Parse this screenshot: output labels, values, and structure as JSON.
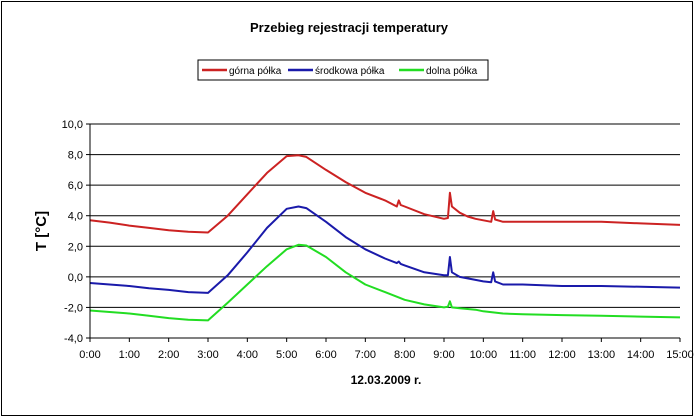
{
  "chart_data": {
    "type": "line",
    "title": "Przebieg rejestracji temperatury",
    "xlabel": "12.03.2009 r.",
    "ylabel": "T [°C]",
    "xlim": [
      0,
      15
    ],
    "ylim": [
      -4,
      10
    ],
    "x_ticks": [
      "0:00",
      "1:00",
      "2:00",
      "3:00",
      "4:00",
      "5:00",
      "6:00",
      "7:00",
      "8:00",
      "9:00",
      "10:00",
      "11:00",
      "12:00",
      "13:00",
      "14:00",
      "15:00"
    ],
    "y_ticks": [
      "-4,0",
      "-2,0",
      "0,0",
      "2,0",
      "4,0",
      "6,0",
      "8,0",
      "10,0"
    ],
    "grid": "horizontal",
    "legend_position": "top",
    "series": [
      {
        "name": "górna półka",
        "color": "#cc2222",
        "x": [
          0,
          0.5,
          1,
          1.5,
          2,
          2.5,
          3,
          3.5,
          4,
          4.5,
          5,
          5.3,
          5.5,
          6,
          6.5,
          7,
          7.5,
          7.8,
          7.85,
          7.9,
          8,
          8.5,
          9,
          9.1,
          9.15,
          9.2,
          9.4,
          9.6,
          9.8,
          10,
          10.2,
          10.25,
          10.3,
          10.5,
          11,
          12,
          13,
          14,
          15
        ],
        "y": [
          3.7,
          3.55,
          3.35,
          3.2,
          3.05,
          2.95,
          2.9,
          4.0,
          5.4,
          6.8,
          7.9,
          7.95,
          7.85,
          7.0,
          6.2,
          5.5,
          5.0,
          4.6,
          5.0,
          4.7,
          4.6,
          4.1,
          3.8,
          3.85,
          5.5,
          4.6,
          4.2,
          3.95,
          3.8,
          3.7,
          3.6,
          4.3,
          3.75,
          3.6,
          3.6,
          3.6,
          3.6,
          3.5,
          3.4
        ]
      },
      {
        "name": "środkowa półka",
        "color": "#1a1aaa",
        "x": [
          0,
          0.5,
          1,
          1.5,
          2,
          2.5,
          3,
          3.5,
          4,
          4.5,
          5,
          5.3,
          5.5,
          6,
          6.5,
          7,
          7.5,
          7.8,
          7.85,
          7.9,
          8,
          8.5,
          9,
          9.1,
          9.15,
          9.2,
          9.4,
          9.6,
          9.8,
          10,
          10.2,
          10.25,
          10.3,
          10.5,
          11,
          12,
          13,
          14,
          15
        ],
        "y": [
          -0.4,
          -0.5,
          -0.6,
          -0.75,
          -0.85,
          -1.0,
          -1.05,
          0.1,
          1.6,
          3.2,
          4.45,
          4.6,
          4.5,
          3.6,
          2.6,
          1.8,
          1.2,
          0.9,
          1.0,
          0.85,
          0.75,
          0.3,
          0.1,
          0.1,
          1.3,
          0.3,
          0.0,
          -0.1,
          -0.2,
          -0.3,
          -0.35,
          0.3,
          -0.3,
          -0.5,
          -0.5,
          -0.6,
          -0.6,
          -0.65,
          -0.7
        ]
      },
      {
        "name": "dolna półka",
        "color": "#22dd22",
        "x": [
          0,
          0.5,
          1,
          1.5,
          2,
          2.5,
          3,
          3.5,
          4,
          4.5,
          5,
          5.3,
          5.5,
          6,
          6.5,
          7,
          7.5,
          7.8,
          8,
          8.5,
          9,
          9.1,
          9.15,
          9.2,
          9.4,
          9.6,
          9.8,
          10,
          10.5,
          11,
          12,
          13,
          14,
          15
        ],
        "y": [
          -2.2,
          -2.3,
          -2.4,
          -2.55,
          -2.7,
          -2.8,
          -2.85,
          -1.7,
          -0.5,
          0.7,
          1.8,
          2.1,
          2.05,
          1.3,
          0.3,
          -0.5,
          -1.0,
          -1.3,
          -1.5,
          -1.8,
          -2.0,
          -1.95,
          -1.6,
          -2.0,
          -2.05,
          -2.1,
          -2.15,
          -2.25,
          -2.4,
          -2.45,
          -2.5,
          -2.55,
          -2.6,
          -2.65
        ]
      }
    ]
  }
}
